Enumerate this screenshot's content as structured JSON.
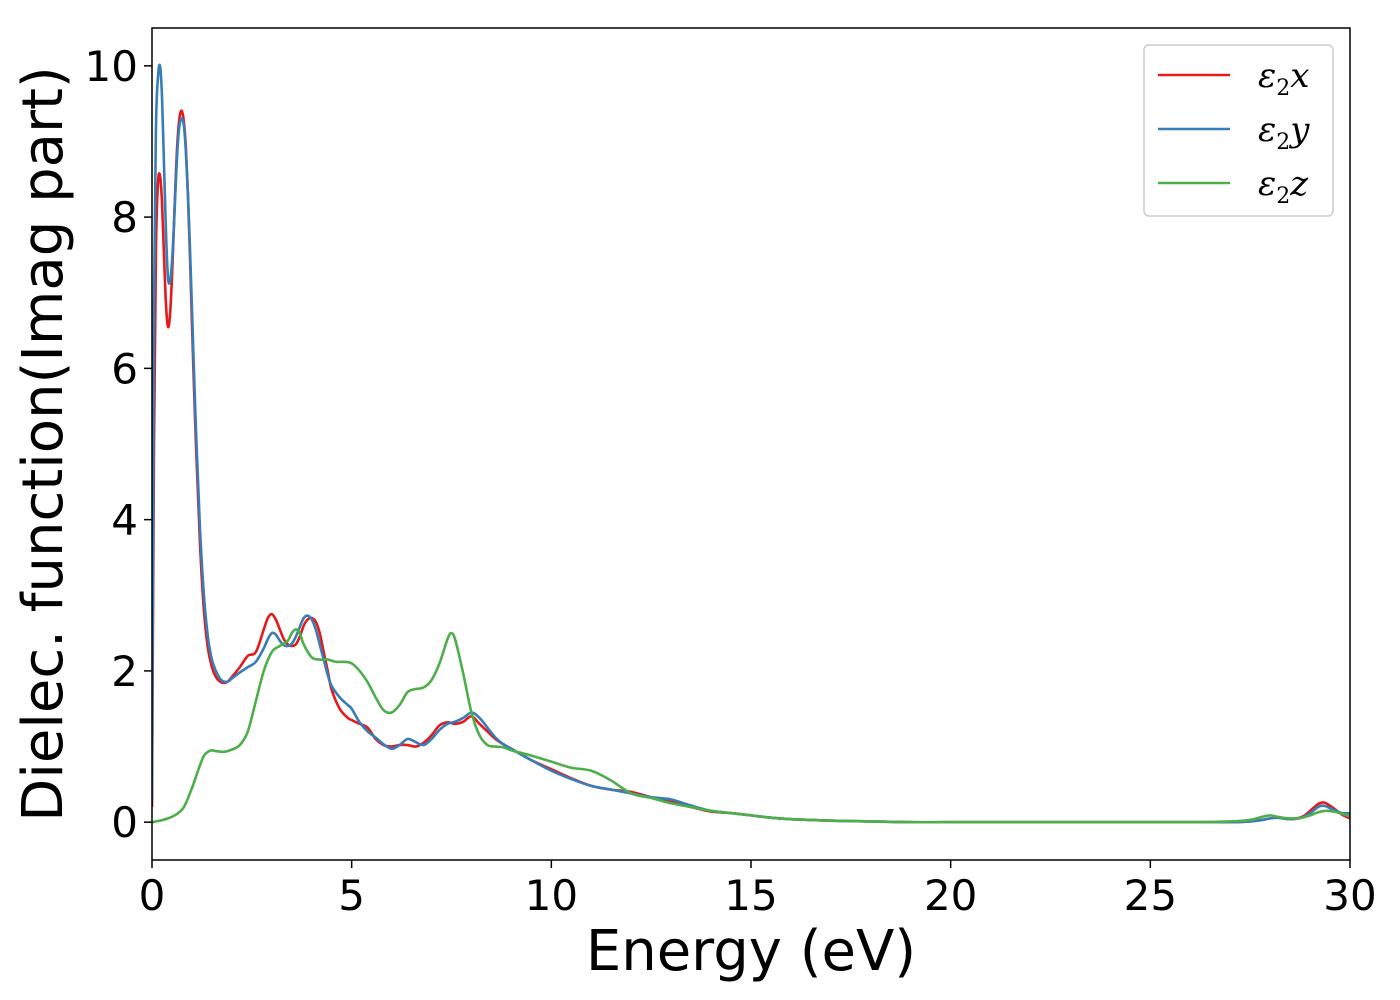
{
  "chart_data": {
    "type": "line",
    "title": "",
    "xlabel": "Energy (eV)",
    "ylabel": "Dielec. function(Imag part)",
    "xlim": [
      0,
      30
    ],
    "ylim": [
      -0.5,
      10.5
    ],
    "xticks": [
      0,
      5,
      10,
      15,
      20,
      25,
      30
    ],
    "yticks": [
      0,
      2,
      4,
      6,
      8,
      10
    ],
    "xtick_labels": [
      "0",
      "5",
      "10",
      "15",
      "20",
      "25",
      "30"
    ],
    "ytick_labels": [
      "0",
      "2",
      "4",
      "6",
      "8",
      "10"
    ],
    "grid": false,
    "legend_position": "top-right",
    "series": [
      {
        "name_base": "ε",
        "name_sub": "2",
        "name_tail": "x",
        "color": "#e41a1c",
        "x": [
          0,
          0.05,
          0.1,
          0.15,
          0.2,
          0.25,
          0.3,
          0.35,
          0.4,
          0.45,
          0.5,
          0.55,
          0.6,
          0.65,
          0.7,
          0.75,
          0.8,
          0.85,
          0.9,
          0.95,
          1.0,
          1.1,
          1.2,
          1.3,
          1.4,
          1.5,
          1.6,
          1.7,
          1.8,
          1.9,
          2.0,
          2.2,
          2.4,
          2.6,
          2.8,
          2.9,
          3.0,
          3.1,
          3.2,
          3.3,
          3.4,
          3.5,
          3.6,
          3.7,
          3.8,
          3.9,
          4.0,
          4.1,
          4.2,
          4.3,
          4.4,
          4.5,
          4.7,
          4.9,
          5.0,
          5.2,
          5.4,
          5.6,
          5.8,
          6.0,
          6.2,
          6.4,
          6.6,
          6.8,
          7.0,
          7.2,
          7.4,
          7.6,
          7.8,
          8.0,
          8.2,
          8.4,
          8.6,
          8.8,
          9.0,
          9.5,
          10.0,
          10.5,
          11.0,
          11.5,
          12.0,
          12.5,
          13.0,
          13.5,
          14.0,
          14.5,
          15.0,
          15.5,
          16.0,
          16.5,
          17.0,
          18.0,
          19.0,
          20.0,
          22.0,
          24.0,
          26.0,
          27.0,
          27.5,
          27.8,
          28.0,
          28.2,
          28.5,
          28.8,
          29.0,
          29.2,
          29.3,
          29.4,
          29.6,
          29.8,
          30.0
        ],
        "y": [
          0.2,
          5.0,
          7.6,
          8.45,
          8.55,
          8.2,
          7.5,
          6.85,
          6.55,
          6.7,
          7.2,
          7.9,
          8.6,
          9.1,
          9.35,
          9.4,
          9.25,
          8.9,
          8.3,
          7.5,
          6.6,
          5.0,
          3.7,
          2.8,
          2.3,
          2.05,
          1.92,
          1.86,
          1.84,
          1.86,
          1.92,
          2.05,
          2.2,
          2.25,
          2.55,
          2.7,
          2.75,
          2.68,
          2.55,
          2.42,
          2.35,
          2.33,
          2.35,
          2.45,
          2.6,
          2.68,
          2.7,
          2.65,
          2.5,
          2.25,
          2.0,
          1.75,
          1.5,
          1.38,
          1.35,
          1.3,
          1.25,
          1.1,
          1.02,
          1.0,
          1.02,
          1.02,
          1.0,
          1.05,
          1.15,
          1.28,
          1.32,
          1.3,
          1.33,
          1.4,
          1.3,
          1.2,
          1.1,
          1.03,
          0.97,
          0.82,
          0.7,
          0.58,
          0.48,
          0.43,
          0.4,
          0.33,
          0.28,
          0.2,
          0.14,
          0.12,
          0.09,
          0.06,
          0.04,
          0.03,
          0.02,
          0.01,
          0.0,
          0.0,
          0.0,
          0.0,
          0.0,
          0.0,
          0.01,
          0.03,
          0.05,
          0.06,
          0.04,
          0.07,
          0.15,
          0.24,
          0.26,
          0.25,
          0.18,
          0.1,
          0.05
        ]
      },
      {
        "name_base": "ε",
        "name_sub": "2",
        "name_tail": "y",
        "color": "#377eb8",
        "x": [
          0,
          0.05,
          0.1,
          0.15,
          0.2,
          0.25,
          0.3,
          0.35,
          0.4,
          0.45,
          0.5,
          0.55,
          0.6,
          0.65,
          0.7,
          0.75,
          0.8,
          0.85,
          0.9,
          0.95,
          1.0,
          1.1,
          1.2,
          1.3,
          1.4,
          1.5,
          1.6,
          1.7,
          1.8,
          1.9,
          2.0,
          2.2,
          2.4,
          2.6,
          2.8,
          2.9,
          3.0,
          3.1,
          3.2,
          3.3,
          3.4,
          3.5,
          3.6,
          3.7,
          3.8,
          3.9,
          4.0,
          4.1,
          4.2,
          4.3,
          4.4,
          4.5,
          4.7,
          4.9,
          5.0,
          5.2,
          5.4,
          5.6,
          5.8,
          6.0,
          6.2,
          6.4,
          6.6,
          6.8,
          7.0,
          7.2,
          7.4,
          7.6,
          7.8,
          8.0,
          8.2,
          8.4,
          8.6,
          8.8,
          9.0,
          9.5,
          10.0,
          10.5,
          11.0,
          11.5,
          12.0,
          12.5,
          13.0,
          13.5,
          14.0,
          14.5,
          15.0,
          15.5,
          16.0,
          16.5,
          17.0,
          18.0,
          19.0,
          20.0,
          22.0,
          24.0,
          26.0,
          27.0,
          27.5,
          27.8,
          28.0,
          28.2,
          28.5,
          28.8,
          29.0,
          29.2,
          29.3,
          29.4,
          29.6,
          29.8,
          30.0
        ],
        "y": [
          0.3,
          6.8,
          9.2,
          9.85,
          10.0,
          9.6,
          8.7,
          7.8,
          7.2,
          7.15,
          7.4,
          7.9,
          8.5,
          9.0,
          9.25,
          9.3,
          9.2,
          8.85,
          8.3,
          7.6,
          6.8,
          5.2,
          3.9,
          3.0,
          2.45,
          2.15,
          2.0,
          1.9,
          1.86,
          1.86,
          1.9,
          1.98,
          2.05,
          2.12,
          2.3,
          2.42,
          2.5,
          2.48,
          2.4,
          2.34,
          2.33,
          2.36,
          2.45,
          2.58,
          2.7,
          2.73,
          2.68,
          2.55,
          2.35,
          2.15,
          1.95,
          1.8,
          1.65,
          1.55,
          1.5,
          1.32,
          1.2,
          1.12,
          1.03,
          0.97,
          1.02,
          1.1,
          1.06,
          1.02,
          1.1,
          1.22,
          1.3,
          1.33,
          1.38,
          1.45,
          1.38,
          1.25,
          1.12,
          1.03,
          0.97,
          0.82,
          0.68,
          0.57,
          0.48,
          0.43,
          0.38,
          0.33,
          0.3,
          0.22,
          0.15,
          0.12,
          0.09,
          0.06,
          0.04,
          0.03,
          0.02,
          0.01,
          0.0,
          0.0,
          0.0,
          0.0,
          0.0,
          0.0,
          0.01,
          0.03,
          0.05,
          0.06,
          0.04,
          0.06,
          0.12,
          0.2,
          0.22,
          0.21,
          0.16,
          0.12,
          0.12
        ]
      },
      {
        "name_base": "ε",
        "name_sub": "2",
        "name_tail": "z",
        "color": "#4daf4a",
        "x": [
          0,
          0.2,
          0.4,
          0.6,
          0.8,
          1.0,
          1.1,
          1.2,
          1.3,
          1.4,
          1.5,
          1.6,
          1.8,
          2.0,
          2.2,
          2.4,
          2.6,
          2.8,
          3.0,
          3.2,
          3.4,
          3.5,
          3.6,
          3.7,
          3.8,
          4.0,
          4.2,
          4.4,
          4.6,
          4.8,
          5.0,
          5.2,
          5.4,
          5.6,
          5.8,
          6.0,
          6.2,
          6.4,
          6.6,
          6.8,
          7.0,
          7.2,
          7.4,
          7.5,
          7.6,
          7.8,
          8.0,
          8.2,
          8.4,
          8.6,
          8.8,
          9.0,
          9.5,
          10.0,
          10.5,
          11.0,
          11.5,
          12.0,
          12.5,
          13.0,
          13.5,
          14.0,
          14.5,
          15.0,
          15.5,
          16.0,
          16.5,
          17.0,
          18.0,
          19.0,
          20.0,
          22.0,
          24.0,
          26.0,
          27.0,
          27.5,
          27.8,
          28.0,
          28.2,
          28.5,
          28.8,
          29.0,
          29.2,
          29.4,
          29.6,
          29.8,
          30.0
        ],
        "y": [
          0.0,
          0.02,
          0.05,
          0.1,
          0.2,
          0.45,
          0.6,
          0.75,
          0.88,
          0.93,
          0.95,
          0.94,
          0.93,
          0.96,
          1.02,
          1.2,
          1.6,
          2.0,
          2.25,
          2.33,
          2.4,
          2.5,
          2.55,
          2.5,
          2.35,
          2.18,
          2.15,
          2.15,
          2.12,
          2.12,
          2.1,
          2.0,
          1.85,
          1.65,
          1.48,
          1.45,
          1.55,
          1.72,
          1.76,
          1.78,
          1.88,
          2.1,
          2.42,
          2.5,
          2.4,
          1.95,
          1.45,
          1.15,
          1.02,
          1.0,
          0.99,
          0.95,
          0.88,
          0.8,
          0.72,
          0.68,
          0.55,
          0.38,
          0.32,
          0.25,
          0.2,
          0.15,
          0.12,
          0.09,
          0.06,
          0.04,
          0.03,
          0.02,
          0.01,
          0.0,
          0.0,
          0.0,
          0.0,
          0.0,
          0.01,
          0.03,
          0.07,
          0.09,
          0.07,
          0.05,
          0.06,
          0.09,
          0.13,
          0.15,
          0.14,
          0.11,
          0.08
        ]
      }
    ]
  }
}
